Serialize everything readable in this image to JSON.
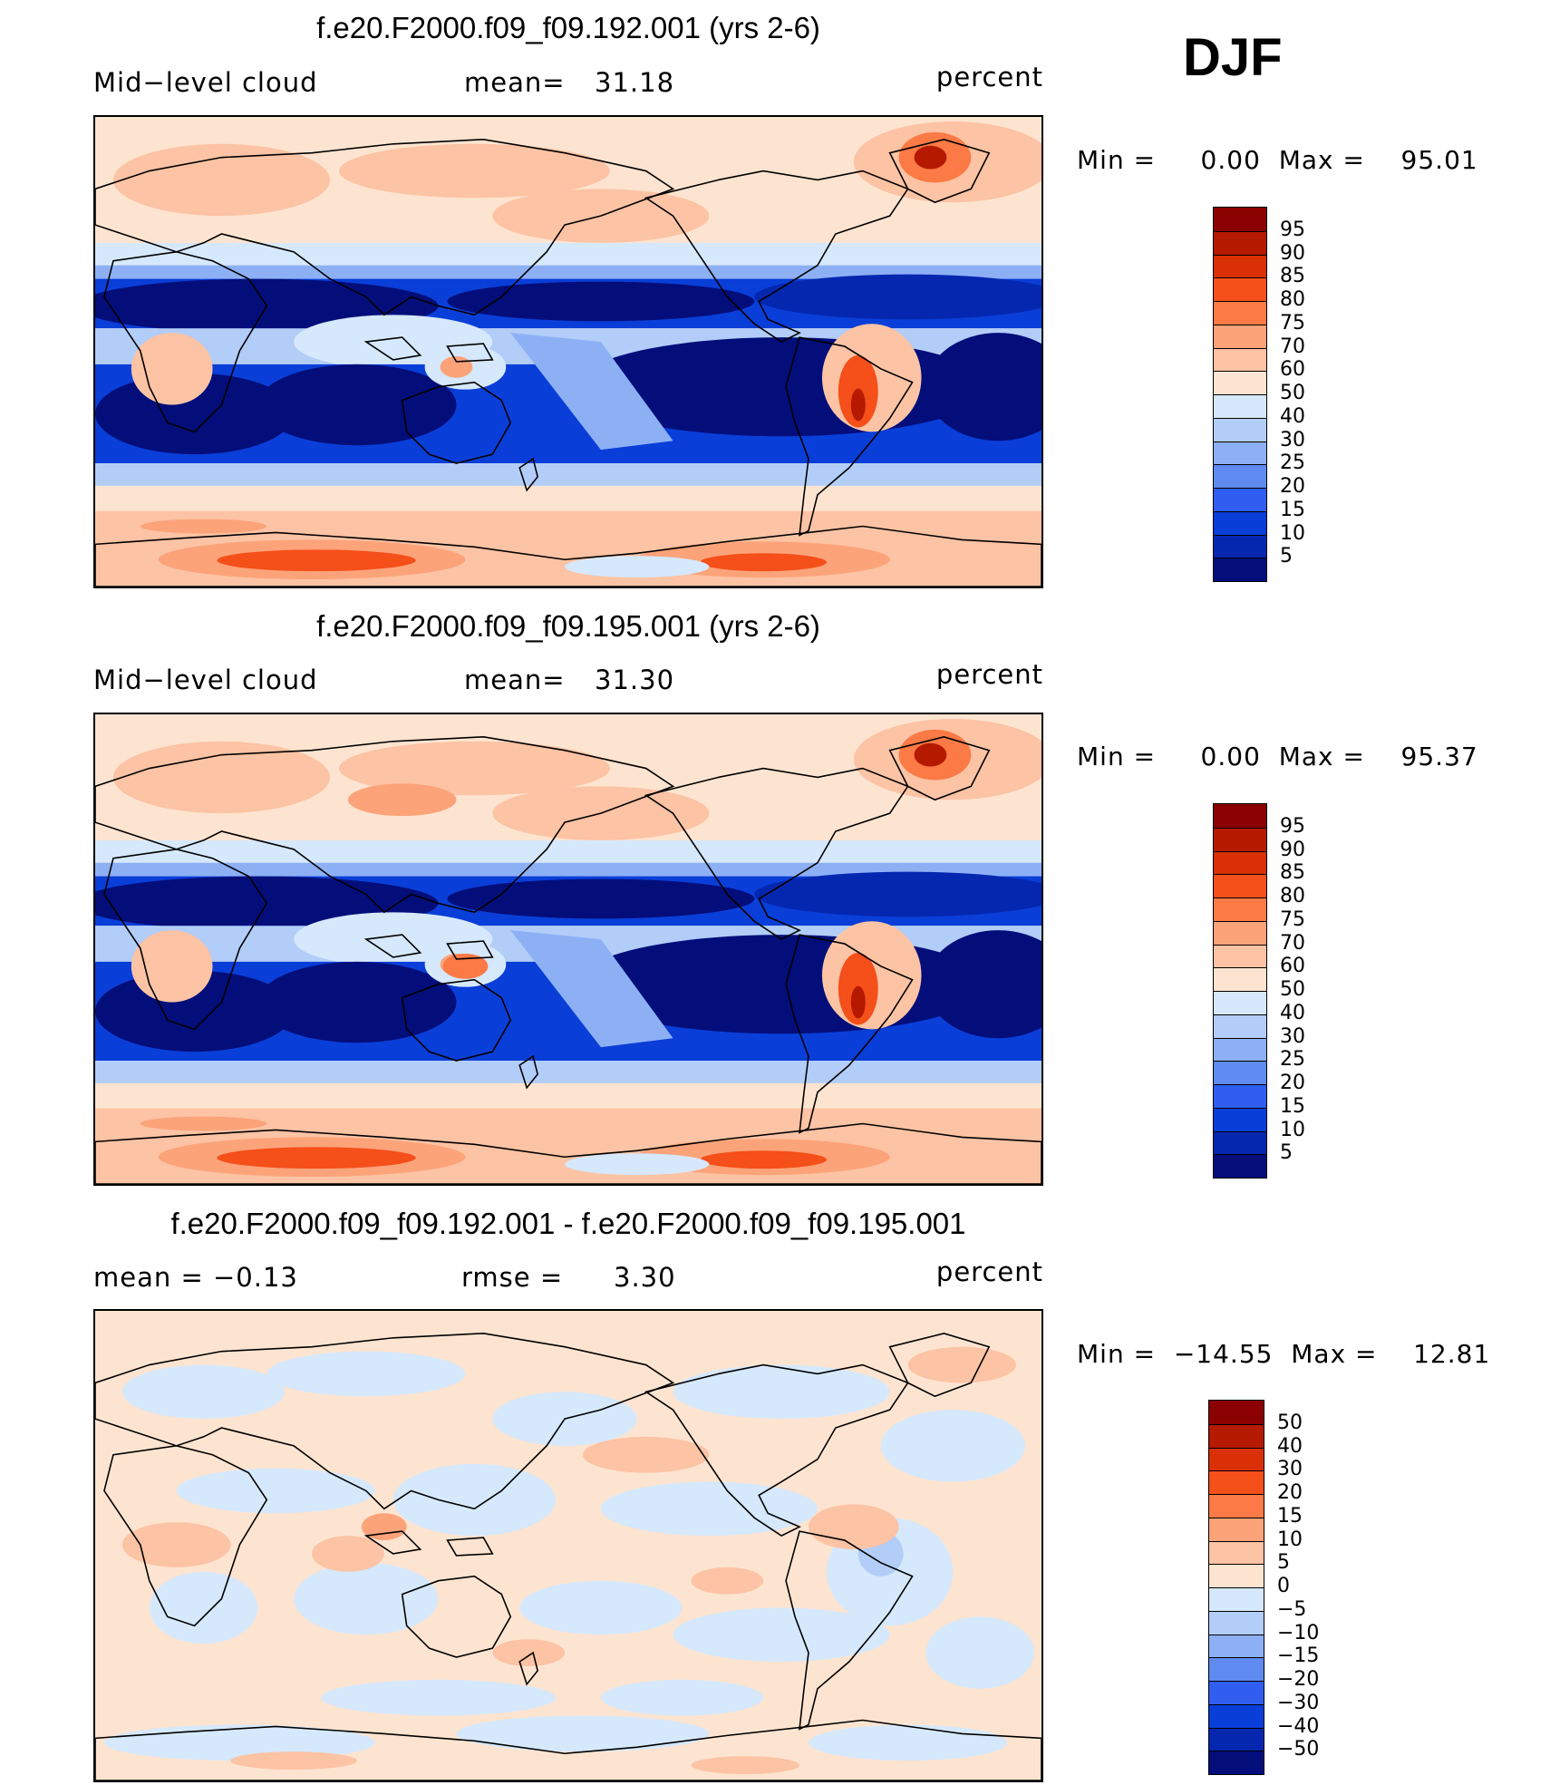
{
  "season": "DJF",
  "panels": [
    {
      "title": "f.e20.F2000.f09_f09.192.001 (yrs 2-6)",
      "left_label": "Mid−level cloud",
      "stat_label": "mean=",
      "stat_value": "31.18",
      "units": "percent",
      "minmax": "Min =     0.00  Max =    95.01",
      "kind": "field",
      "variant": 1
    },
    {
      "title": "f.e20.F2000.f09_f09.195.001 (yrs 2-6)",
      "left_label": "Mid−level cloud",
      "stat_label": "mean=",
      "stat_value": "31.30",
      "units": "percent",
      "minmax": "Min =     0.00  Max =    95.37",
      "kind": "field",
      "variant": 2
    },
    {
      "title": "f.e20.F2000.f09_f09.192.001 - f.e20.F2000.f09_f09.195.001",
      "left_label": "mean  =    −0.13",
      "stat_label": "rmse  =",
      "stat_value": "3.30",
      "units": "percent",
      "minmax": "Min =  −14.55  Max =    12.81",
      "kind": "diff",
      "variant": 3
    }
  ],
  "colorbars": {
    "field": {
      "labels": [
        "95",
        "90",
        "85",
        "80",
        "75",
        "70",
        "60",
        "50",
        "40",
        "30",
        "25",
        "20",
        "15",
        "10",
        "5"
      ],
      "colors": [
        "#8b0000",
        "#b51a00",
        "#d93006",
        "#f54f1a",
        "#fc7a45",
        "#fca37a",
        "#fcc3a4",
        "#fde4d0",
        "#d6e8fb",
        "#b2cdf8",
        "#8db0f5",
        "#5f8af0",
        "#2f5ef0",
        "#0a3ed8",
        "#0527b0",
        "#030e7a"
      ]
    },
    "diff": {
      "labels": [
        "50",
        "40",
        "30",
        "20",
        "15",
        "10",
        "5",
        "0",
        "−5",
        "−10",
        "−15",
        "−20",
        "−30",
        "−40",
        "−50"
      ],
      "colors": [
        "#8b0000",
        "#b51a00",
        "#d93006",
        "#f54f1a",
        "#fc7a45",
        "#fca37a",
        "#fcc3a4",
        "#fde4d0",
        "#d6e8fb",
        "#b2cdf8",
        "#8db0f5",
        "#5f8af0",
        "#2f5ef0",
        "#0a3ed8",
        "#0527b0",
        "#030e7a"
      ]
    }
  }
}
